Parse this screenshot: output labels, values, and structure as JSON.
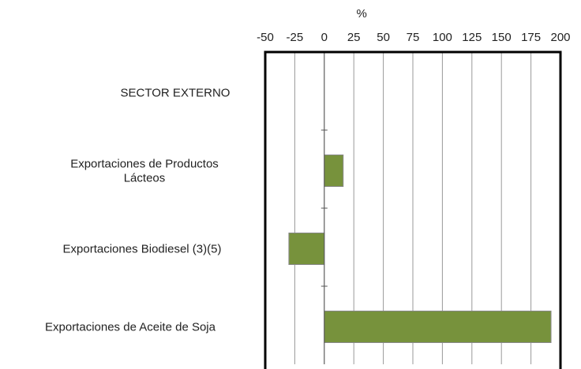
{
  "chart_data": {
    "type": "bar",
    "orientation": "horizontal",
    "xlabel": "%",
    "xlim": [
      -50,
      200
    ],
    "xticks": [
      -50,
      -25,
      0,
      25,
      50,
      75,
      100,
      125,
      150,
      175,
      200
    ],
    "x_axis_position": "top",
    "grid": true,
    "legend": "none",
    "categories": [
      [
        "SECTOR EXTERNO"
      ],
      [
        "Exportaciones de Productos",
        "Lácteos"
      ],
      [
        "Exportaciones Biodiesel (3)(5)"
      ],
      [
        "Exportaciones de Aceite de Soja"
      ]
    ],
    "values": [
      null,
      16,
      -30,
      192
    ],
    "colors": {
      "bar": "#77923c",
      "bar_border": "#888888",
      "grid": "#999999",
      "frame": "#000000"
    }
  }
}
